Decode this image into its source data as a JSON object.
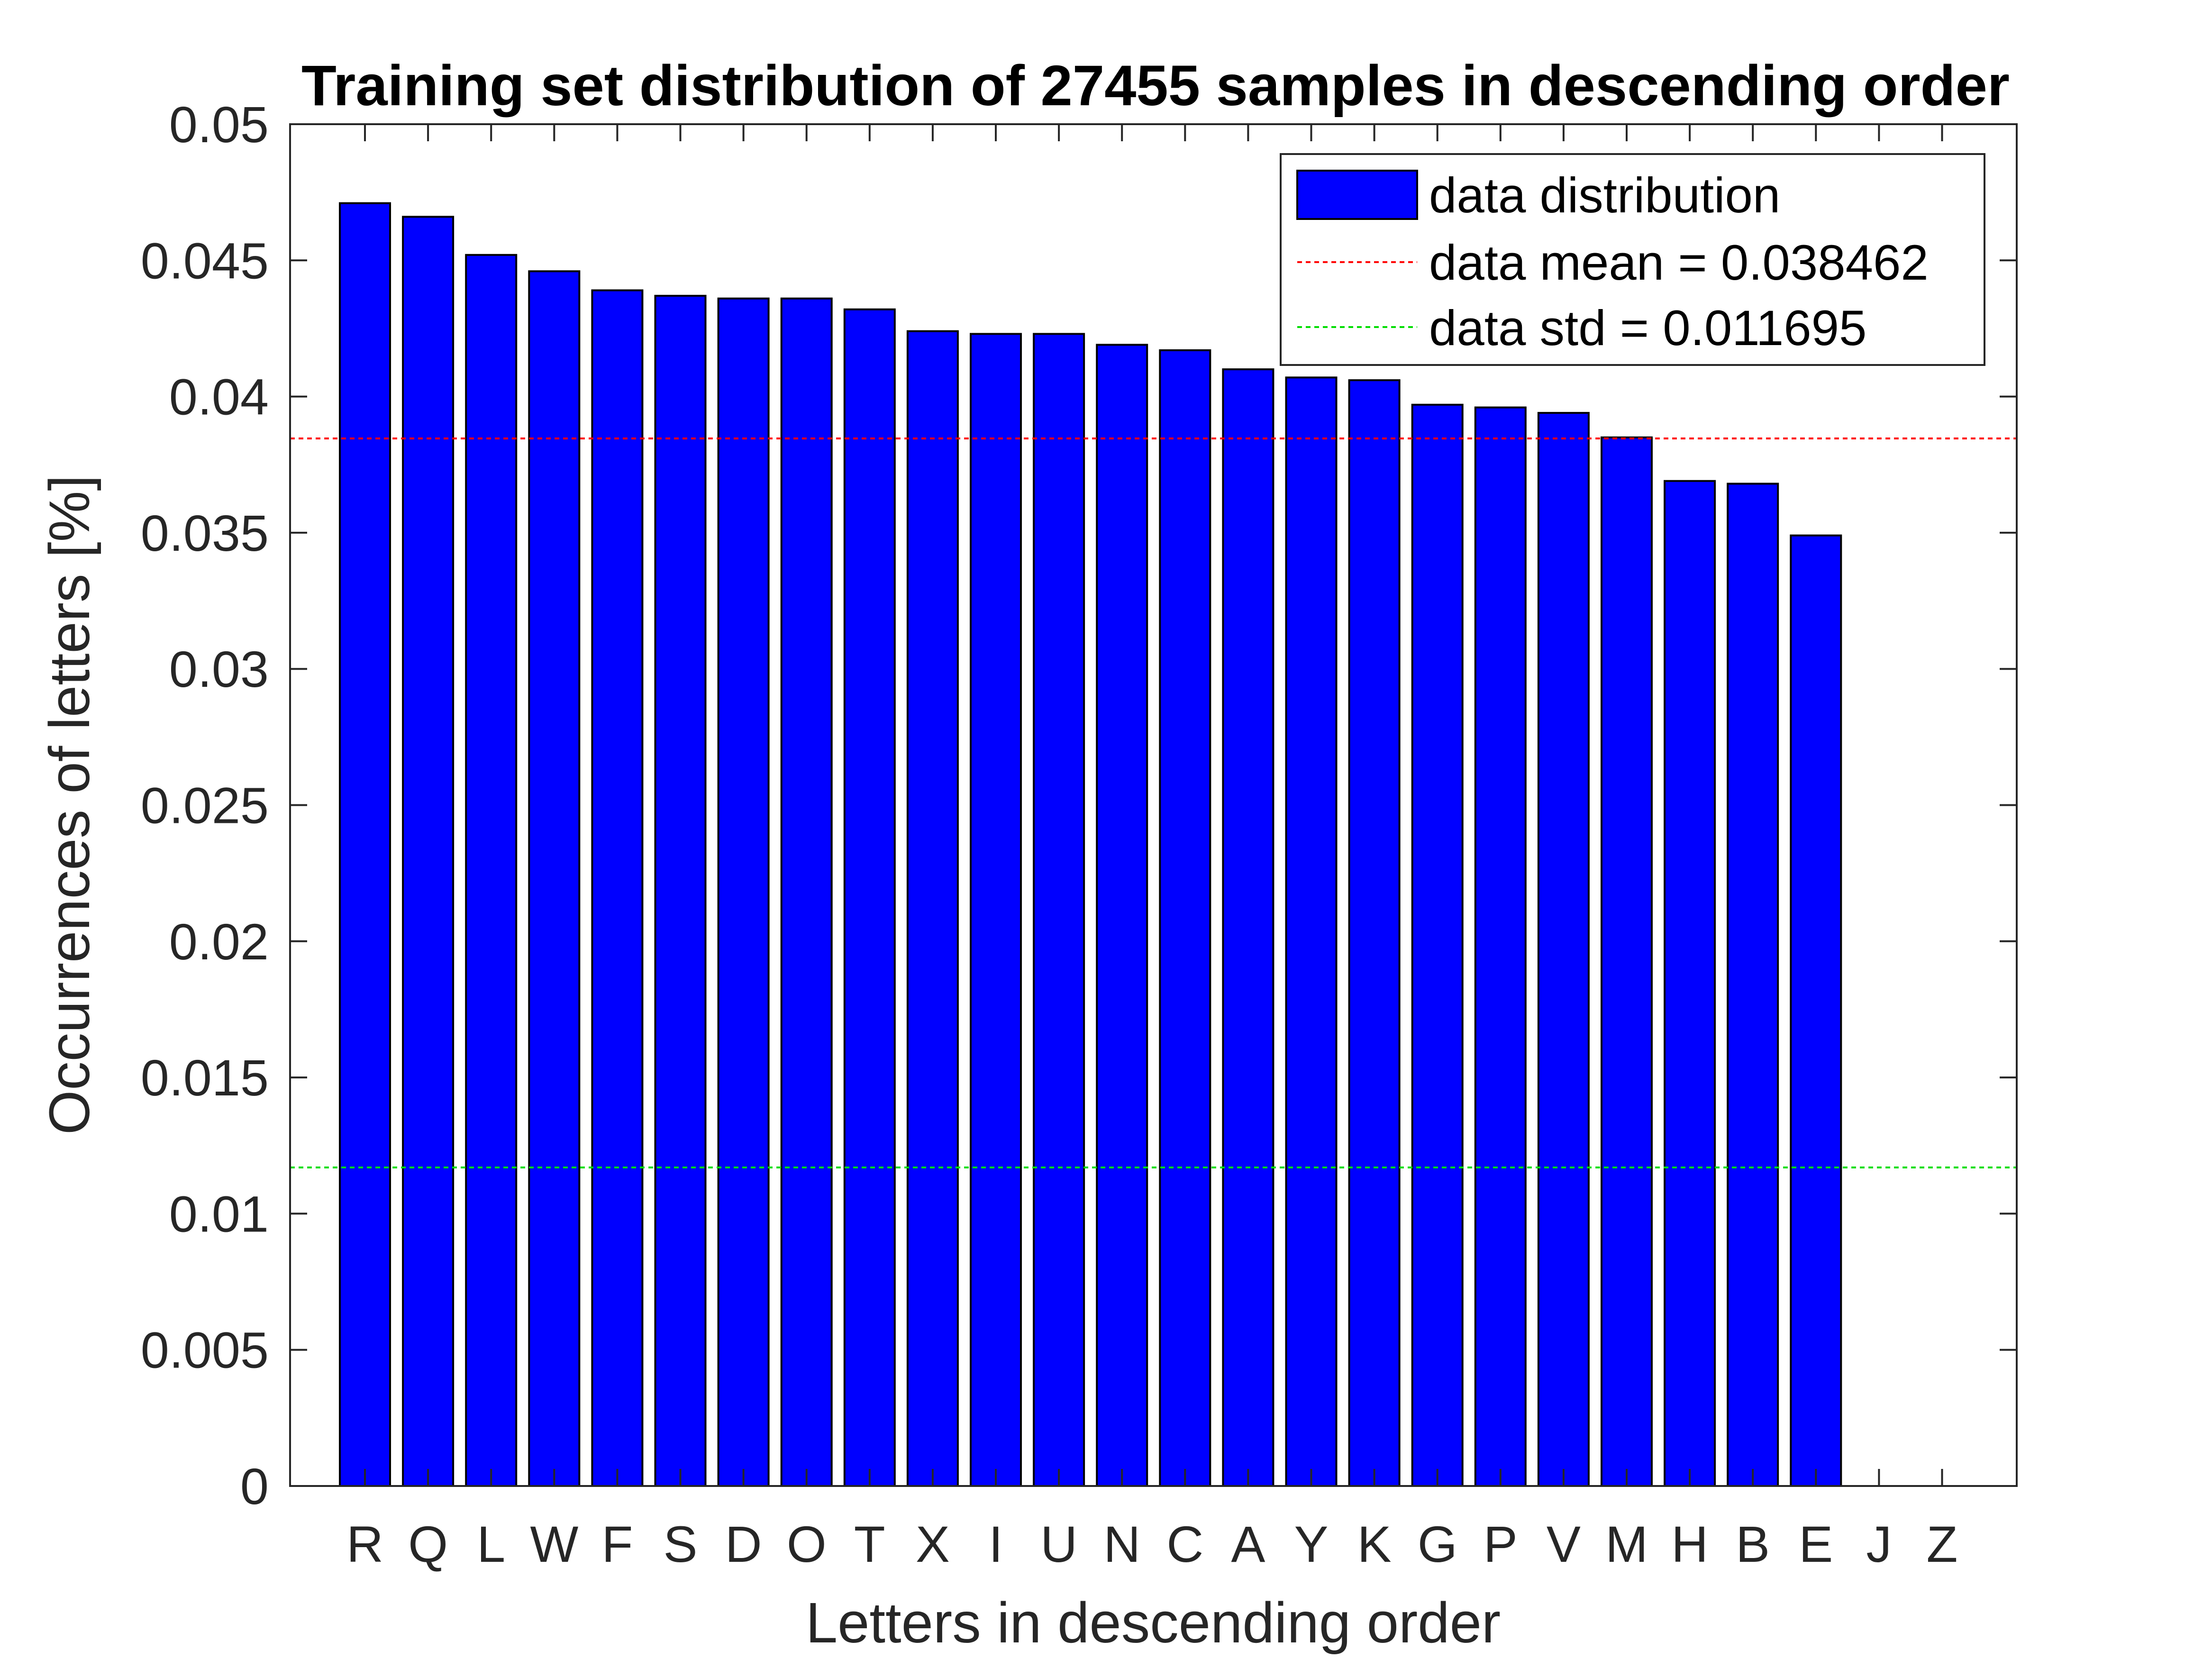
{
  "chart_data": {
    "type": "bar",
    "title": "Training set distribution of 27455 samples in descending order",
    "xlabel": "Letters in descending order",
    "ylabel": "Occurrences of letters [%]",
    "categories": [
      "R",
      "Q",
      "L",
      "W",
      "F",
      "S",
      "D",
      "O",
      "T",
      "X",
      "I",
      "U",
      "N",
      "C",
      "A",
      "Y",
      "K",
      "G",
      "P",
      "V",
      "M",
      "H",
      "B",
      "E",
      "J",
      "Z"
    ],
    "values": [
      0.0471,
      0.0466,
      0.0452,
      0.0446,
      0.0439,
      0.0437,
      0.0436,
      0.0436,
      0.0432,
      0.0424,
      0.0423,
      0.0423,
      0.0419,
      0.0417,
      0.041,
      0.0407,
      0.0406,
      0.0397,
      0.0396,
      0.0394,
      0.0385,
      0.0369,
      0.0368,
      0.0349,
      0,
      0
    ],
    "ylim": [
      0,
      0.05
    ],
    "yticks": [
      "0",
      "0.005",
      "0.01",
      "0.015",
      "0.02",
      "0.025",
      "0.03",
      "0.035",
      "0.04",
      "0.045",
      "0.05"
    ],
    "reference_lines": [
      {
        "name": "data mean = 0.038462",
        "value": 0.038462,
        "color": "#ff0000",
        "style": "dotted"
      },
      {
        "name": "data std = 0.011695",
        "value": 0.011695,
        "color": "#00dd00",
        "style": "dotted"
      }
    ],
    "legend": {
      "position": "top-right",
      "entries": [
        "data distribution",
        "data mean = 0.038462",
        "data std = 0.011695"
      ]
    },
    "grid": false,
    "colors": {
      "bar": "#0000ff",
      "bar_edge": "#000000",
      "mean_line": "#ff0000",
      "std_line": "#00dd00",
      "axes": "#262626"
    }
  }
}
